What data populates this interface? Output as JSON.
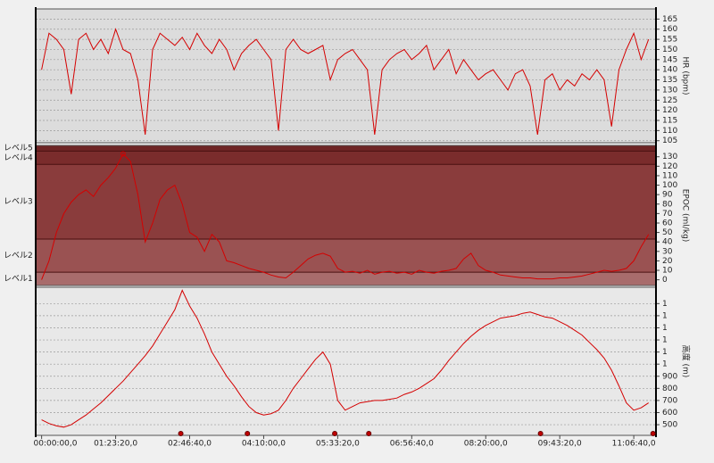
{
  "chart_data": {
    "type": "line",
    "color": "#d40000",
    "x": [
      0,
      500,
      1000,
      1500,
      2000,
      2500,
      3000,
      3500,
      4000,
      4500,
      5000,
      5500,
      6000,
      6500,
      7000,
      7500,
      8000,
      8500,
      9000,
      9500,
      10000,
      10500,
      11000,
      11500,
      12000,
      12500,
      13000,
      13500,
      14000,
      14500,
      15000,
      15500,
      16000,
      16500,
      17000,
      17500,
      18000,
      18500,
      19000,
      19500,
      20000,
      20500,
      21000,
      21500,
      22000,
      22500,
      23000,
      23500,
      24000,
      24500,
      25000,
      25500,
      26000,
      26500,
      27000,
      27500,
      28000,
      28500,
      29000,
      29500,
      30000,
      30500,
      31000,
      31500,
      32000,
      32500,
      33000,
      33500,
      34000,
      34500,
      35000,
      35500,
      36000,
      36500,
      37000,
      37500,
      38000,
      38500,
      39000,
      39500,
      40000,
      40500,
      41000
    ],
    "xlim": [
      -400,
      41500
    ],
    "xticks": [
      {
        "value": 0,
        "label": "00:00:00,0"
      },
      {
        "value": 5000,
        "label": "01:23:20,0"
      },
      {
        "value": 10000,
        "label": "02:46:40,0"
      },
      {
        "value": 15000,
        "label": "04:10:00,0"
      },
      {
        "value": 20000,
        "label": "05:33:20,0"
      },
      {
        "value": 25000,
        "label": "06:56:40,0"
      },
      {
        "value": 30000,
        "label": "08:20:00,0"
      },
      {
        "value": 35000,
        "label": "09:43:20,0"
      },
      {
        "value": 40000,
        "label": "11:06:40,0"
      }
    ],
    "lap_markers": [
      9400,
      13900,
      19800,
      22100,
      33700,
      41300
    ],
    "panels": [
      {
        "type": "line",
        "ylabel": "HR (bpm)",
        "background": "#dcdcdc",
        "grid": true,
        "ylim": [
          104,
          170
        ],
        "yticks": [
          105,
          110,
          115,
          120,
          125,
          130,
          135,
          140,
          145,
          150,
          155,
          160,
          165
        ],
        "values": [
          140,
          158,
          155,
          150,
          128,
          155,
          158,
          150,
          155,
          148,
          160,
          150,
          148,
          135,
          108,
          150,
          158,
          155,
          152,
          156,
          150,
          158,
          152,
          148,
          155,
          150,
          140,
          148,
          152,
          155,
          150,
          145,
          110,
          150,
          155,
          150,
          148,
          150,
          152,
          135,
          145,
          148,
          150,
          145,
          140,
          108,
          140,
          145,
          148,
          150,
          145,
          148,
          152,
          140,
          145,
          150,
          138,
          145,
          140,
          135,
          138,
          140,
          135,
          130,
          138,
          140,
          132,
          108,
          135,
          138,
          130,
          135,
          132,
          138,
          135,
          140,
          135,
          112,
          140,
          150,
          158,
          145,
          155
        ]
      },
      {
        "type": "zone-line",
        "ylabel": "EPOC (ml/kg)",
        "grid": false,
        "ylim": [
          -6,
          142
        ],
        "yticks": [
          0,
          10,
          20,
          30,
          40,
          50,
          60,
          70,
          80,
          90,
          100,
          110,
          120,
          130
        ],
        "zone_bounds": [
          8,
          43,
          122,
          136
        ],
        "zone_colors": [
          "#a86c6c",
          "#9a5252",
          "#8a3c3c",
          "#7a2c2c",
          "#6e2424"
        ],
        "levels": [
          "レベル1",
          "レベル2",
          "レベル3",
          "レベル4",
          "レベル5"
        ],
        "values": [
          0,
          20,
          50,
          70,
          82,
          90,
          95,
          88,
          100,
          108,
          118,
          133,
          125,
          90,
          40,
          60,
          85,
          95,
          100,
          80,
          50,
          45,
          30,
          48,
          40,
          20,
          18,
          15,
          12,
          10,
          8,
          5,
          3,
          2,
          8,
          15,
          22,
          26,
          28,
          25,
          12,
          8,
          9,
          7,
          10,
          6,
          8,
          9,
          7,
          8,
          6,
          10,
          8,
          7,
          9,
          10,
          12,
          22,
          28,
          15,
          10,
          8,
          5,
          4,
          3,
          2,
          2,
          1,
          1,
          1,
          2,
          2,
          3,
          4,
          6,
          8,
          10,
          9,
          10,
          12,
          20,
          35,
          48
        ]
      },
      {
        "type": "line",
        "ylabel": "高度 (m)",
        "background": "#e8e8e8",
        "grid": true,
        "ylim": [
          412,
          1635
        ],
        "yticks": [
          500,
          600,
          700,
          800,
          900,
          {
            "value": 1000,
            "label": "1"
          },
          {
            "value": 1100,
            "label": "1"
          },
          {
            "value": 1200,
            "label": "1"
          },
          {
            "value": 1300,
            "label": "1"
          },
          {
            "value": 1400,
            "label": "1"
          },
          {
            "value": 1500,
            "label": "1"
          }
        ],
        "values": [
          540,
          510,
          490,
          480,
          500,
          540,
          580,
          630,
          680,
          740,
          800,
          860,
          930,
          1000,
          1070,
          1150,
          1250,
          1350,
          1450,
          1610,
          1480,
          1380,
          1250,
          1100,
          1000,
          900,
          820,
          730,
          650,
          600,
          580,
          590,
          620,
          700,
          800,
          880,
          960,
          1040,
          1100,
          1000,
          700,
          620,
          650,
          680,
          690,
          700,
          700,
          710,
          720,
          750,
          770,
          800,
          840,
          880,
          950,
          1030,
          1100,
          1170,
          1230,
          1280,
          1320,
          1350,
          1380,
          1390,
          1400,
          1420,
          1430,
          1410,
          1390,
          1380,
          1350,
          1320,
          1280,
          1240,
          1180,
          1120,
          1050,
          950,
          820,
          680,
          620,
          640,
          680
        ]
      }
    ]
  }
}
